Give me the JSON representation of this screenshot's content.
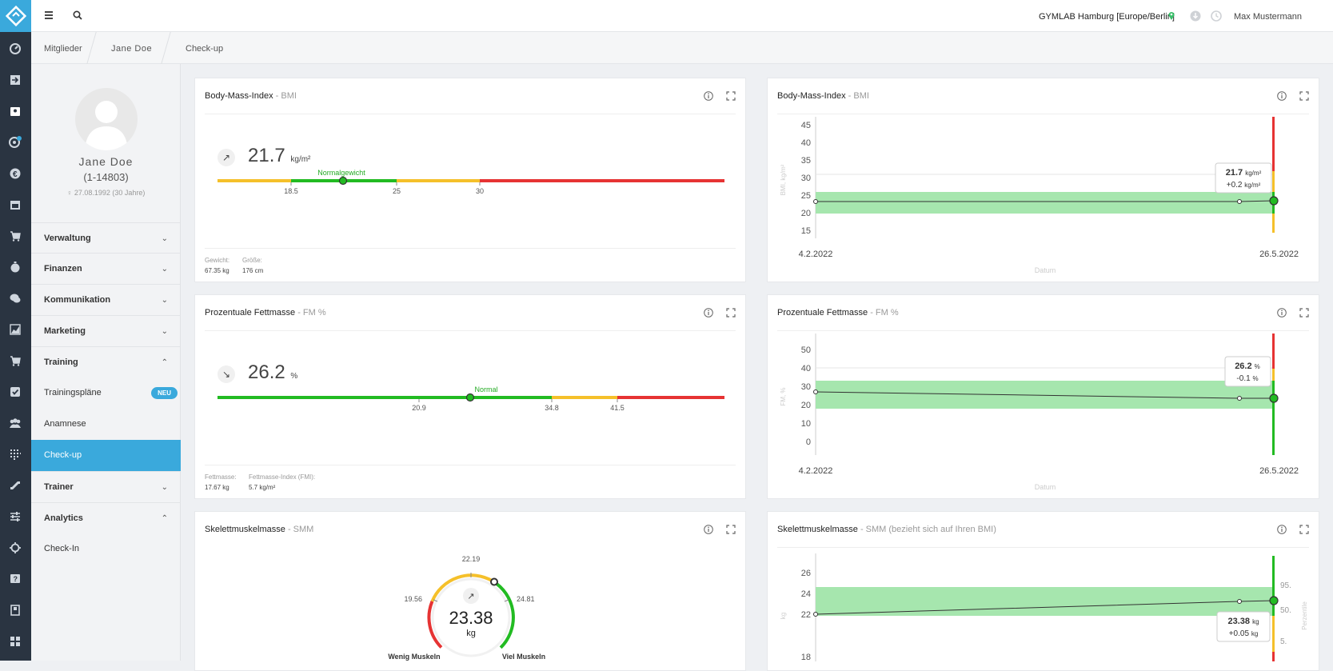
{
  "header": {
    "gym_location": "GYMLAB Hamburg [Europe/Berlin]",
    "user_name": "Max Mustermann"
  },
  "breadcrumb": [
    "Mitglieder",
    "Jane Doe",
    "Check-up"
  ],
  "profile": {
    "name": "Jane Doe",
    "id": "(1-14803)",
    "dob": "27.08.1992 (30 Jahre)"
  },
  "sidebar": {
    "sections": [
      {
        "label": "Verwaltung",
        "chevron": "⌄"
      },
      {
        "label": "Finanzen",
        "chevron": "⌄"
      },
      {
        "label": "Kommunikation",
        "chevron": "⌄"
      },
      {
        "label": "Marketing",
        "chevron": "⌄"
      },
      {
        "label": "Training",
        "chevron": "⌃"
      },
      {
        "label": "Trainer",
        "chevron": "⌄"
      },
      {
        "label": "Analytics",
        "chevron": "⌃"
      }
    ],
    "training_items": [
      {
        "label": "Trainingspläne",
        "badge": "NEU"
      },
      {
        "label": "Anamnese"
      },
      {
        "label": "Check-up"
      }
    ],
    "analytics_items": [
      {
        "label": "Check-In"
      }
    ]
  },
  "cards": {
    "bmi_gauge": {
      "title": "Body-Mass-Index",
      "subtitle": "- BMI",
      "value": "21.7",
      "unit": "kg/m²",
      "category": "Normalgewicht",
      "thresholds": [
        "18.5",
        "25",
        "30"
      ],
      "foot_labels": [
        "Gewicht:",
        "Größe:"
      ],
      "foot_values": [
        "67.35 kg",
        "176 cm"
      ]
    },
    "bmi_chart": {
      "title": "Body-Mass-Index",
      "subtitle": "- BMI",
      "ylabel": "BMI, kg/m²",
      "xlabel": "Datum",
      "ticks": [
        "45",
        "40",
        "35",
        "30",
        "25",
        "20",
        "15"
      ],
      "x_start": "4.2.2022",
      "x_end": "26.5.2022",
      "tooltip_value": "21.7",
      "tooltip_unit": "kg/m²",
      "tooltip_delta": "+0.2",
      "tooltip_delta_unit": "kg/m²"
    },
    "fm_gauge": {
      "title": "Prozentuale Fettmasse",
      "subtitle": "- FM %",
      "value": "26.2",
      "unit": "%",
      "category": "Normal",
      "thresholds": [
        "20.9",
        "34.8",
        "41.5"
      ],
      "foot_labels": [
        "Fettmasse:",
        "Fettmasse-Index (FMI):"
      ],
      "foot_values": [
        "17.67 kg",
        "5.7 kg/m²"
      ]
    },
    "fm_chart": {
      "title": "Prozentuale Fettmasse",
      "subtitle": "- FM %",
      "ylabel": "FM, %",
      "xlabel": "Datum",
      "ticks": [
        "50",
        "40",
        "30",
        "20",
        "10",
        "0"
      ],
      "x_start": "4.2.2022",
      "x_end": "26.5.2022",
      "tooltip_value": "26.2",
      "tooltip_unit": "%",
      "tooltip_delta": "-0.1",
      "tooltip_delta_unit": "%"
    },
    "smm_gauge": {
      "title": "Skelettmuskelmasse",
      "subtitle": "- SMM",
      "value": "23.38",
      "unit": "kg",
      "labels": [
        "22.19",
        "19.56",
        "24.81"
      ],
      "low_label": "Wenig Muskeln",
      "high_label": "Viel Muskeln"
    },
    "smm_chart": {
      "title": "Skelettmuskelmasse",
      "subtitle": "- SMM (bezieht sich auf Ihren BMI)",
      "ylabel": "kg",
      "ylabel_right": "Perzentile",
      "ticks": [
        "26",
        "24",
        "22",
        "18"
      ],
      "ticks_right": [
        "95.",
        "50.",
        "5."
      ],
      "tooltip_value": "23.38",
      "tooltip_unit": "kg",
      "tooltip_delta": "+0.05",
      "tooltip_delta_unit": "kg"
    }
  },
  "chart_data": [
    {
      "type": "line",
      "title": "Body-Mass-Index - BMI",
      "xlabel": "Datum",
      "ylabel": "BMI, kg/m²",
      "x": [
        "4.2.2022",
        "",
        "26.5.2022"
      ],
      "series": [
        {
          "values": [
            21.5,
            21.5,
            21.7
          ]
        }
      ],
      "ylim": [
        15,
        45
      ],
      "normal_band": [
        18.5,
        25
      ]
    },
    {
      "type": "line",
      "title": "Prozentuale Fettmasse - FM %",
      "xlabel": "Datum",
      "ylabel": "FM, %",
      "x": [
        "4.2.2022",
        "",
        "26.5.2022"
      ],
      "series": [
        {
          "values": [
            29,
            26.3,
            26.2
          ]
        }
      ],
      "ylim": [
        0,
        50
      ],
      "normal_band": [
        20.9,
        34.8
      ]
    },
    {
      "type": "line",
      "title": "Skelettmuskelmasse - SMM (bezieht sich auf Ihren BMI)",
      "ylabel": "kg",
      "series": [
        {
          "values": [
            22,
            23.33,
            23.38
          ]
        }
      ],
      "ylim": [
        18,
        26
      ],
      "normal_band": [
        21.9,
        25.2
      ]
    }
  ],
  "colors": {
    "accent": "#3aa9dc",
    "green": "#22bb22",
    "yellow": "#f5c02a",
    "red": "#e63333",
    "band": "#a6e6ae"
  }
}
